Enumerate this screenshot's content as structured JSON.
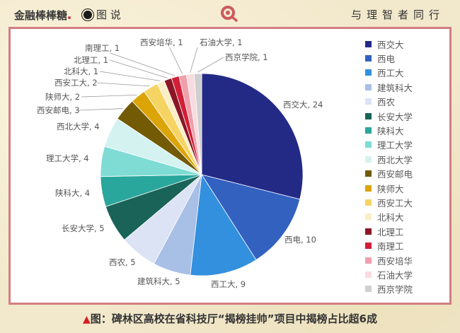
{
  "header": {
    "logo_text": "金融棒棒糖",
    "section_label": "图 说",
    "slogan": "与理智者同行",
    "search_icon": "search-icon"
  },
  "caption": {
    "marker": "▲",
    "text": "图：碑林区高校在省科技厅“揭榜挂帅”项目中揭榜占比超6成"
  },
  "chart_data": {
    "type": "pie",
    "title": "",
    "legend_position": "right",
    "categories": [
      "西交大",
      "西电",
      "西工大",
      "建筑科大",
      "西农",
      "长安大学",
      "陕科大",
      "理工大学",
      "西北大学",
      "西安邮电",
      "陕师大",
      "西安工大",
      "北科大",
      "北理工",
      "南理工",
      "西安培华",
      "石油大学",
      "西京学院"
    ],
    "values": [
      24,
      10,
      9,
      5,
      5,
      5,
      4,
      4,
      4,
      3,
      2,
      2,
      1,
      1,
      1,
      1,
      1,
      1
    ],
    "colors": [
      "#232a86",
      "#3261c0",
      "#3290de",
      "#a8bfe6",
      "#dbe3f5",
      "#1a6358",
      "#2aa79c",
      "#7fdcd5",
      "#d4f2f0",
      "#735a05",
      "#dba407",
      "#f6d464",
      "#fbeec6",
      "#8c1626",
      "#d21f37",
      "#f0a0ab",
      "#f8dbe0",
      "#cfcfcf"
    ],
    "labels": [
      "西交大, 24",
      "西电, 10",
      "西工大, 9",
      "建筑科大, 5",
      "西农, 5",
      "长安大学, 5",
      "陕科大, 4",
      "理工大学, 4",
      "西北大学, 4",
      "西安邮电, 3",
      "陕师大, 2",
      "西安工大, 2",
      "北科大, 1",
      "北理工, 1",
      "南理工, 1",
      "西安培华, 1",
      "石油大学, 1",
      "西京学院, 1"
    ],
    "total": 83
  }
}
